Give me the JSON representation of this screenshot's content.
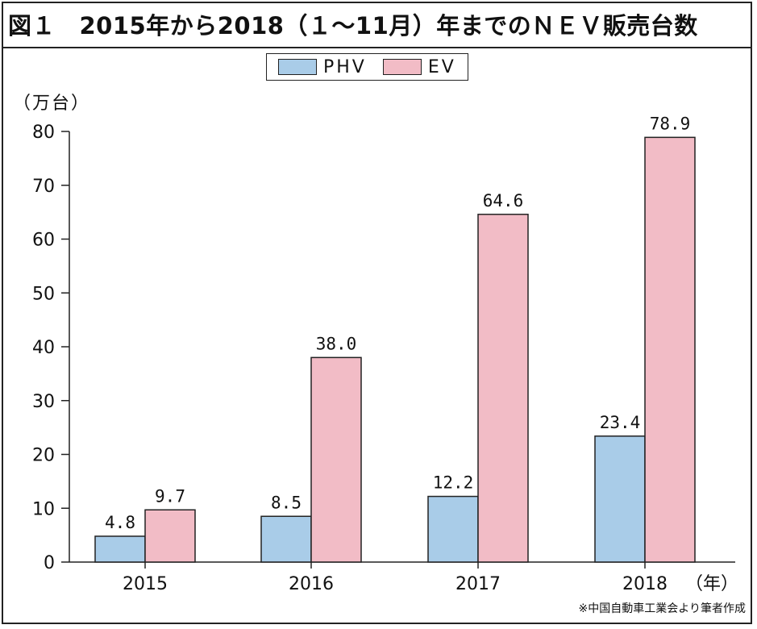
{
  "chart_data": {
    "type": "bar",
    "title": "図１　2015年から2018（１～11月）年までのＮＥＶ販売台数",
    "unit_label": "（万台）",
    "x_unit_label": "（年）",
    "categories": [
      "2015",
      "2016",
      "2017",
      "2018"
    ],
    "series": [
      {
        "name": "PHV",
        "values": [
          4.8,
          8.5,
          12.2,
          23.4
        ],
        "value_labels": [
          "4.8",
          "8.5",
          "12.2",
          "23.4"
        ]
      },
      {
        "name": "EV",
        "values": [
          9.7,
          38.0,
          64.6,
          78.9
        ],
        "value_labels": [
          "9.7",
          "38.0",
          "64.6",
          "78.9"
        ]
      }
    ],
    "ylim": [
      0,
      80
    ],
    "yticks": [
      0,
      10,
      20,
      30,
      40,
      50,
      60,
      70,
      80
    ],
    "grid": false,
    "legend_position": "top-center"
  },
  "colors": {
    "phv": "#a9cce8",
    "ev": "#f2bcc6",
    "stroke": "#222222"
  },
  "source_note": "※中国自動車工業会より筆者作成"
}
